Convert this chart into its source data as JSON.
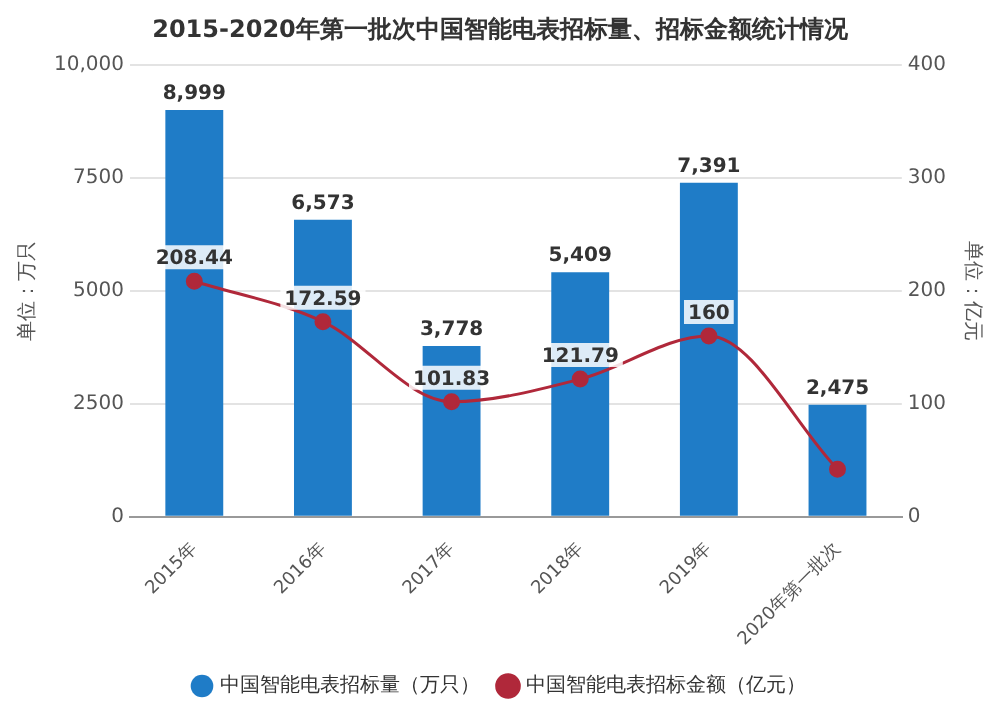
{
  "chart_data": {
    "type": "bar",
    "title": "2015-2020年第一批次中国智能电表招标量、招标金额统计情况",
    "categories": [
      "2015年",
      "2016年",
      "2017年",
      "2018年",
      "2019年",
      "2020年第一批次"
    ],
    "series": [
      {
        "name": "中国智能电表招标量（万只）",
        "color": "#1f7cc7",
        "values": [
          8999,
          6573,
          3778,
          5409,
          7391,
          2475
        ],
        "value_labels": [
          "8,999",
          "6,573",
          "3,778",
          "5,409",
          "7,391",
          "2,475"
        ]
      },
      {
        "name": "中国智能电表招标金额（亿元）",
        "type": "line",
        "axis": "y2",
        "color": "#b0283a",
        "marker": "circle",
        "values": [
          208.44,
          172.59,
          101.83,
          121.79,
          160,
          42
        ],
        "value_labels": [
          "208.44",
          "172.59",
          "101.83",
          "121.79",
          "160",
          null
        ]
      }
    ],
    "ylabel": "单位：万只",
    "y2label": "单位：亿元",
    "ylim": [
      0,
      10000
    ],
    "yticks": [
      0,
      {
        "value": 2500,
        "label": "2500"
      },
      {
        "value": 5000,
        "label": "5000"
      },
      {
        "value": 7500,
        "label": "7500"
      },
      {
        "value": 10000,
        "label": "10,000"
      }
    ],
    "y2lim": [
      0,
      400
    ],
    "y2ticks": [
      0,
      100,
      200,
      300,
      400
    ],
    "grid": "y",
    "legend": "bottom"
  }
}
